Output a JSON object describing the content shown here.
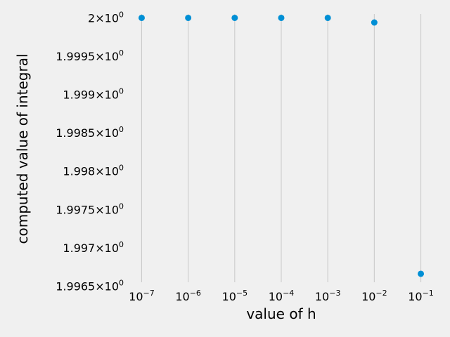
{
  "chart_data": {
    "type": "scatter",
    "x_scale": "log",
    "xlabel": "value of h",
    "ylabel": "computed value of integral",
    "x": [
      1e-07,
      1e-06,
      1e-05,
      0.0001,
      0.001,
      0.01,
      0.1
    ],
    "y": [
      2.0,
      2.0,
      2.0,
      2.0,
      2.0,
      1.99994,
      1.99666
    ],
    "ylim": [
      1.99655,
      2.00005
    ],
    "x_ticks": [
      {
        "value": 1e-07,
        "base": "10",
        "exp": "−7"
      },
      {
        "value": 1e-06,
        "base": "10",
        "exp": "−6"
      },
      {
        "value": 1e-05,
        "base": "10",
        "exp": "−5"
      },
      {
        "value": 0.0001,
        "base": "10",
        "exp": "−4"
      },
      {
        "value": 0.001,
        "base": "10",
        "exp": "−3"
      },
      {
        "value": 0.01,
        "base": "10",
        "exp": "−2"
      },
      {
        "value": 0.1,
        "base": "10",
        "exp": "−1"
      }
    ],
    "y_ticks": [
      {
        "value": 2.0,
        "mantissa": "2",
        "base": "10",
        "exp": "0"
      },
      {
        "value": 1.9995,
        "mantissa": "1.9995",
        "base": "10",
        "exp": "0"
      },
      {
        "value": 1.999,
        "mantissa": "1.999",
        "base": "10",
        "exp": "0"
      },
      {
        "value": 1.9985,
        "mantissa": "1.9985",
        "base": "10",
        "exp": "0"
      },
      {
        "value": 1.998,
        "mantissa": "1.998",
        "base": "10",
        "exp": "0"
      },
      {
        "value": 1.9975,
        "mantissa": "1.9975",
        "base": "10",
        "exp": "0"
      },
      {
        "value": 1.997,
        "mantissa": "1.997",
        "base": "10",
        "exp": "0"
      },
      {
        "value": 1.9965,
        "mantissa": "1.9965",
        "base": "10",
        "exp": "0"
      }
    ],
    "grid": "x-only",
    "colors": {
      "marker": "#008fd5",
      "grid": "#cbcbcb",
      "background": "#f0f0f0"
    }
  }
}
